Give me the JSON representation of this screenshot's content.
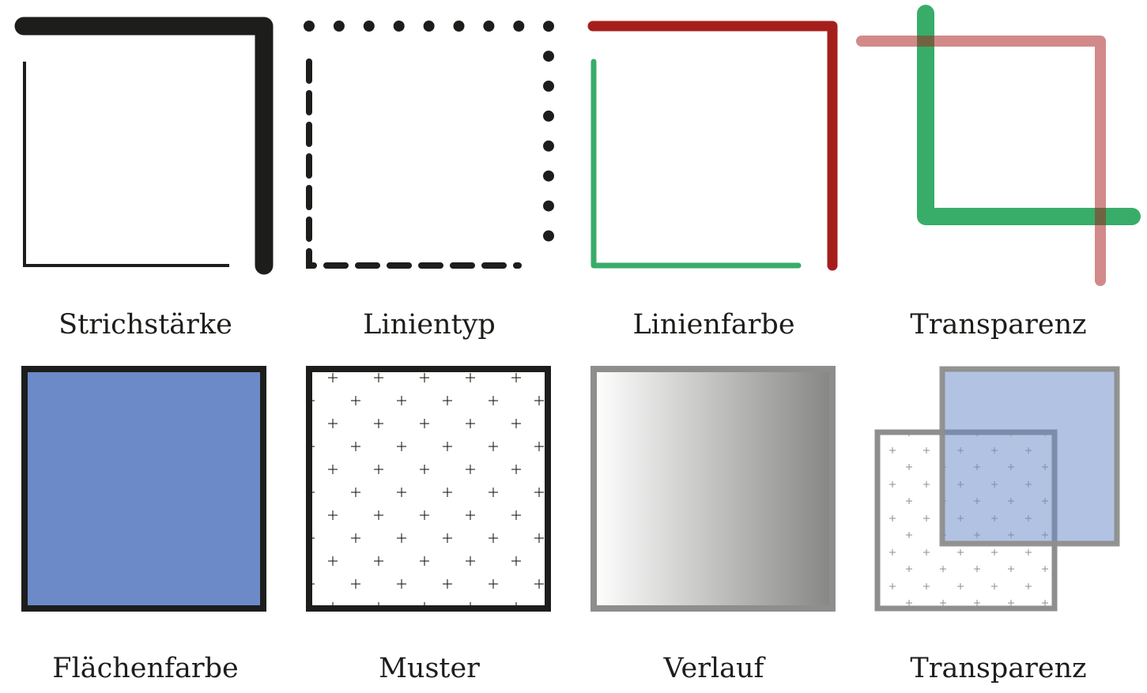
{
  "colors": {
    "ink": "#1d1d1b",
    "red": "#a61e1c",
    "green": "#38ad69",
    "red_transparent": "#d48c88",
    "fill_blue": "#6b8ac7",
    "fill_blue_transparent": "#b1c2e2",
    "gray_frame": "#8e8e8c",
    "gradient_start": "#ffffff",
    "gradient_end": "#868684"
  },
  "captions": {
    "line_width": "Strichstärke",
    "line_type": "Linientyp",
    "line_color": "Linienfarbe",
    "line_transparency": "Transparenz",
    "fill_color": "Flächenfarbe",
    "pattern": "Muster",
    "gradient": "Verlauf",
    "fill_transparency": "Transparenz"
  }
}
